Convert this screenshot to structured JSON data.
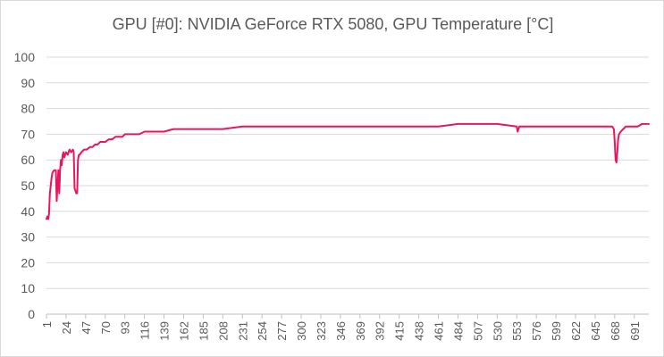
{
  "chart_data": {
    "type": "line",
    "title": "GPU [#0]: NVIDIA GeForce RTX 5080, GPU Temperature [°C]",
    "xlabel": "",
    "ylabel": "",
    "ylim": [
      0,
      100
    ],
    "xlim": [
      1,
      708
    ],
    "grid": true,
    "legend": "none",
    "y_ticks": [
      0,
      10,
      20,
      30,
      40,
      50,
      60,
      70,
      80,
      90,
      100
    ],
    "x_ticks": [
      1,
      24,
      47,
      70,
      93,
      116,
      139,
      162,
      185,
      208,
      231,
      254,
      277,
      300,
      323,
      346,
      369,
      392,
      415,
      438,
      461,
      484,
      507,
      530,
      553,
      576,
      599,
      622,
      645,
      668,
      691
    ],
    "series": [
      {
        "color": "#e8175d",
        "points": [
          [
            1,
            37
          ],
          [
            2,
            38
          ],
          [
            3,
            37
          ],
          [
            4,
            39
          ],
          [
            5,
            47
          ],
          [
            6,
            50
          ],
          [
            7,
            53
          ],
          [
            8,
            55
          ],
          [
            10,
            56
          ],
          [
            12,
            56
          ],
          [
            13,
            44
          ],
          [
            14,
            50
          ],
          [
            15,
            56
          ],
          [
            16,
            47
          ],
          [
            17,
            56
          ],
          [
            18,
            60
          ],
          [
            19,
            58
          ],
          [
            20,
            62
          ],
          [
            21,
            63
          ],
          [
            22,
            61
          ],
          [
            24,
            63
          ],
          [
            26,
            62
          ],
          [
            28,
            64
          ],
          [
            30,
            63
          ],
          [
            32,
            64
          ],
          [
            33,
            63
          ],
          [
            34,
            49
          ],
          [
            35,
            48
          ],
          [
            36,
            47
          ],
          [
            37,
            47
          ],
          [
            38,
            60
          ],
          [
            39,
            62
          ],
          [
            40,
            62
          ],
          [
            42,
            63
          ],
          [
            45,
            64
          ],
          [
            48,
            64
          ],
          [
            52,
            65
          ],
          [
            55,
            65
          ],
          [
            58,
            66
          ],
          [
            61,
            66
          ],
          [
            64,
            67
          ],
          [
            67,
            67
          ],
          [
            70,
            67
          ],
          [
            74,
            68
          ],
          [
            78,
            68
          ],
          [
            82,
            69
          ],
          [
            86,
            69
          ],
          [
            90,
            69
          ],
          [
            93,
            70
          ],
          [
            100,
            70
          ],
          [
            110,
            70
          ],
          [
            116,
            71
          ],
          [
            125,
            71
          ],
          [
            139,
            71
          ],
          [
            150,
            72
          ],
          [
            162,
            72
          ],
          [
            185,
            72
          ],
          [
            208,
            72
          ],
          [
            231,
            73
          ],
          [
            254,
            73
          ],
          [
            277,
            73
          ],
          [
            300,
            73
          ],
          [
            323,
            73
          ],
          [
            346,
            73
          ],
          [
            369,
            73
          ],
          [
            392,
            73
          ],
          [
            415,
            73
          ],
          [
            438,
            73
          ],
          [
            461,
            73
          ],
          [
            484,
            74
          ],
          [
            507,
            74
          ],
          [
            530,
            74
          ],
          [
            553,
            73
          ],
          [
            554,
            71
          ],
          [
            556,
            73
          ],
          [
            576,
            73
          ],
          [
            599,
            73
          ],
          [
            622,
            73
          ],
          [
            645,
            73
          ],
          [
            660,
            73
          ],
          [
            665,
            73
          ],
          [
            667,
            72
          ],
          [
            668,
            67
          ],
          [
            669,
            60
          ],
          [
            670,
            59
          ],
          [
            671,
            63
          ],
          [
            672,
            68
          ],
          [
            673,
            70
          ],
          [
            675,
            71
          ],
          [
            678,
            72
          ],
          [
            681,
            73
          ],
          [
            685,
            73
          ],
          [
            690,
            73
          ],
          [
            695,
            73
          ],
          [
            700,
            74
          ],
          [
            705,
            74
          ],
          [
            708,
            74
          ]
        ]
      }
    ]
  }
}
